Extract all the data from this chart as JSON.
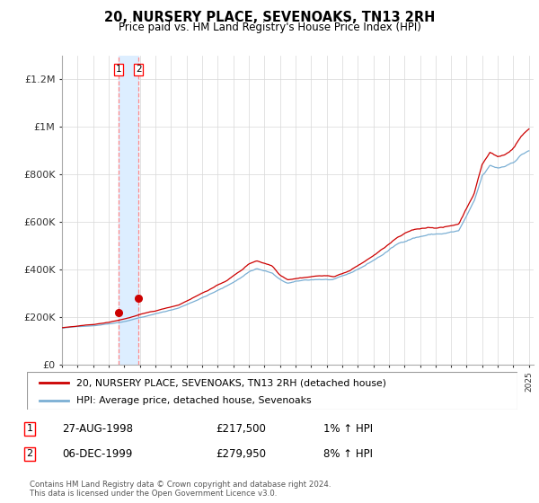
{
  "title": "20, NURSERY PLACE, SEVENOAKS, TN13 2RH",
  "subtitle": "Price paid vs. HM Land Registry's House Price Index (HPI)",
  "legend_line1": "20, NURSERY PLACE, SEVENOAKS, TN13 2RH (detached house)",
  "legend_line2": "HPI: Average price, detached house, Sevenoaks",
  "transaction1_date": "27-AUG-1998",
  "transaction1_price": "£217,500",
  "transaction1_hpi": "1% ↑ HPI",
  "transaction2_date": "06-DEC-1999",
  "transaction2_price": "£279,950",
  "transaction2_hpi": "8% ↑ HPI",
  "footnote": "Contains HM Land Registry data © Crown copyright and database right 2024.\nThis data is licensed under the Open Government Licence v3.0.",
  "line_color_red": "#cc0000",
  "line_color_blue": "#7bafd4",
  "shade_color": "#ddeeff",
  "ylim": [
    0,
    1300000
  ],
  "yticks": [
    0,
    200000,
    400000,
    600000,
    800000,
    1000000,
    1200000
  ],
  "ytick_labels": [
    "£0",
    "£200K",
    "£400K",
    "£600K",
    "£800K",
    "£1M",
    "£1.2M"
  ],
  "transaction1_x": 1998.65,
  "transaction1_y": 217500,
  "transaction2_x": 1999.92,
  "transaction2_y": 279950,
  "xmin": 1995.0,
  "xmax": 2025.3
}
